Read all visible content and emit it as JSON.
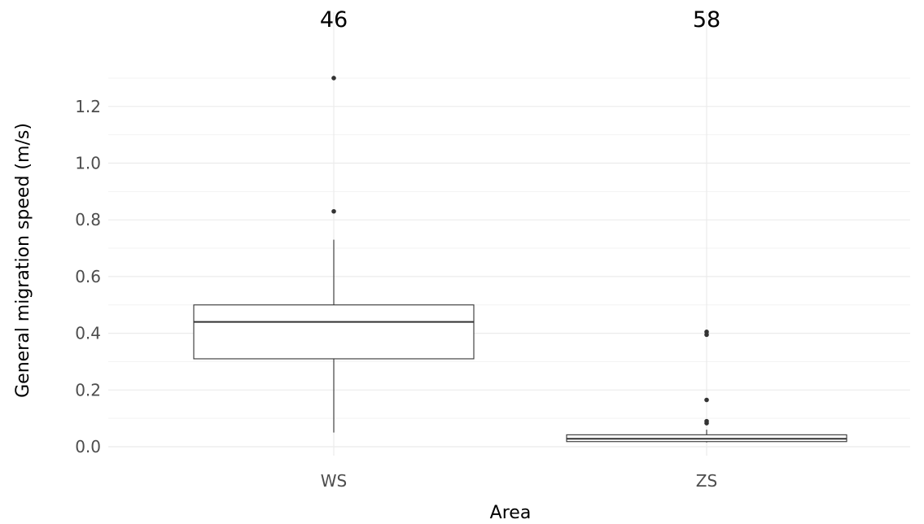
{
  "chart_data": {
    "type": "boxplot",
    "title": "",
    "xlabel": "Area",
    "ylabel": "General migration speed (m/s)",
    "ylim": [
      -0.03,
      1.4
    ],
    "yticks": [
      0.0,
      0.2,
      0.4,
      0.6,
      0.8,
      1.0,
      1.2
    ],
    "ytick_labels": [
      "0.0",
      "0.2",
      "0.4",
      "0.6",
      "0.8",
      "1.0",
      "1.2"
    ],
    "grid": true,
    "categories": [
      "WS",
      "ZS"
    ],
    "counts": [
      "46",
      "58"
    ],
    "boxes": [
      {
        "category": "WS",
        "whisker_low": 0.05,
        "q1": 0.31,
        "median": 0.44,
        "q3": 0.5,
        "whisker_high": 0.73,
        "outliers": [
          0.83,
          1.3
        ]
      },
      {
        "category": "ZS",
        "whisker_low": 0.015,
        "q1": 0.018,
        "median": 0.028,
        "q3": 0.042,
        "whisker_high": 0.06,
        "outliers": [
          0.083,
          0.09,
          0.165,
          0.395,
          0.405
        ]
      }
    ]
  }
}
